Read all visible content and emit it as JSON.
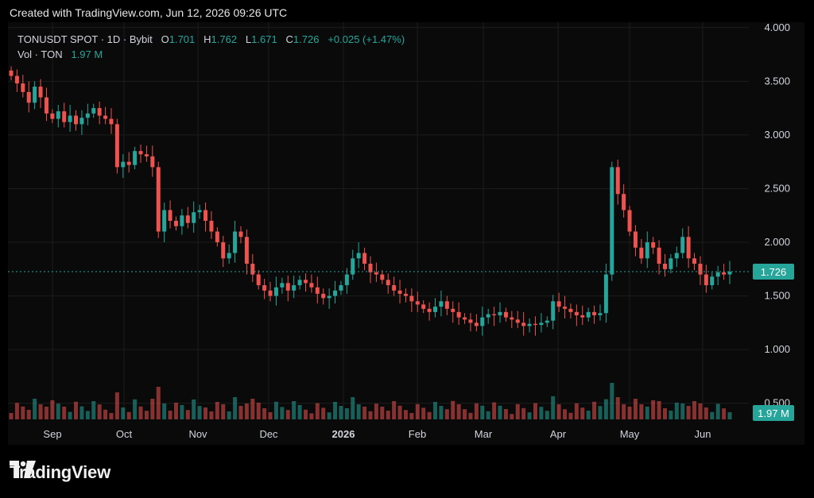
{
  "header": {
    "created_text": "Created with TradingView.com, Jun 12, 2026 09:26 UTC"
  },
  "legend": {
    "symbol": "TONUSDT SPOT · 1D · Bybit",
    "o_label": "O",
    "o_value": "1.701",
    "h_label": "H",
    "h_value": "1.762",
    "l_label": "L",
    "l_value": "1.671",
    "c_label": "C",
    "c_value": "1.726",
    "change": "+0.025 (+1.47%)",
    "vol_label": "Vol · TON",
    "vol_value": "1.97 M"
  },
  "footer": {
    "brand": "TradingView"
  },
  "colors": {
    "up": "#26a69a",
    "down": "#ef5350",
    "background": "#000000",
    "grid": "#1c1c1c",
    "price_line": "#26a69a"
  },
  "chart_data": {
    "type": "candlestick",
    "y_axis_ticks": [
      "4.000",
      "3.500",
      "3.000",
      "2.500",
      "2.000",
      "1.500",
      "1.000",
      "0.500"
    ],
    "y_range": [
      0.35,
      4.05
    ],
    "x_axis_ticks": [
      {
        "label": "Sep",
        "bold": false
      },
      {
        "label": "Oct",
        "bold": false
      },
      {
        "label": "Nov",
        "bold": false
      },
      {
        "label": "Dec",
        "bold": false
      },
      {
        "label": "2026",
        "bold": true
      },
      {
        "label": "Feb",
        "bold": false
      },
      {
        "label": "Mar",
        "bold": false
      },
      {
        "label": "Apr",
        "bold": false
      },
      {
        "label": "May",
        "bold": false
      },
      {
        "label": "Jun",
        "bold": false
      }
    ],
    "last_price": "1.726",
    "last_volume": "1.97 M",
    "close_series": [
      3.55,
      3.48,
      3.4,
      3.3,
      3.45,
      3.35,
      3.2,
      3.15,
      3.22,
      3.12,
      3.18,
      3.1,
      3.16,
      3.2,
      3.25,
      3.18,
      3.15,
      3.1,
      2.7,
      2.75,
      2.72,
      2.85,
      2.82,
      2.8,
      2.7,
      2.1,
      2.3,
      2.2,
      2.15,
      2.25,
      2.18,
      2.28,
      2.3,
      2.2,
      2.1,
      2.0,
      1.85,
      1.9,
      2.1,
      2.05,
      1.8,
      1.7,
      1.6,
      1.55,
      1.5,
      1.58,
      1.62,
      1.55,
      1.6,
      1.65,
      1.62,
      1.58,
      1.52,
      1.48,
      1.5,
      1.55,
      1.6,
      1.7,
      1.85,
      1.9,
      1.8,
      1.72,
      1.7,
      1.65,
      1.6,
      1.55,
      1.52,
      1.5,
      1.45,
      1.42,
      1.38,
      1.35,
      1.4,
      1.45,
      1.38,
      1.35,
      1.3,
      1.28,
      1.25,
      1.22,
      1.3,
      1.33,
      1.32,
      1.35,
      1.3,
      1.28,
      1.25,
      1.22,
      1.24,
      1.23,
      1.25,
      1.27,
      1.45,
      1.4,
      1.38,
      1.35,
      1.32,
      1.3,
      1.35,
      1.32,
      1.34,
      1.7,
      2.7,
      2.45,
      2.3,
      2.1,
      1.95,
      1.85,
      2.0,
      1.95,
      1.8,
      1.75,
      1.85,
      1.9,
      2.05,
      1.85,
      1.8,
      1.7,
      1.6,
      1.68,
      1.72,
      1.7,
      1.726
    ]
  }
}
